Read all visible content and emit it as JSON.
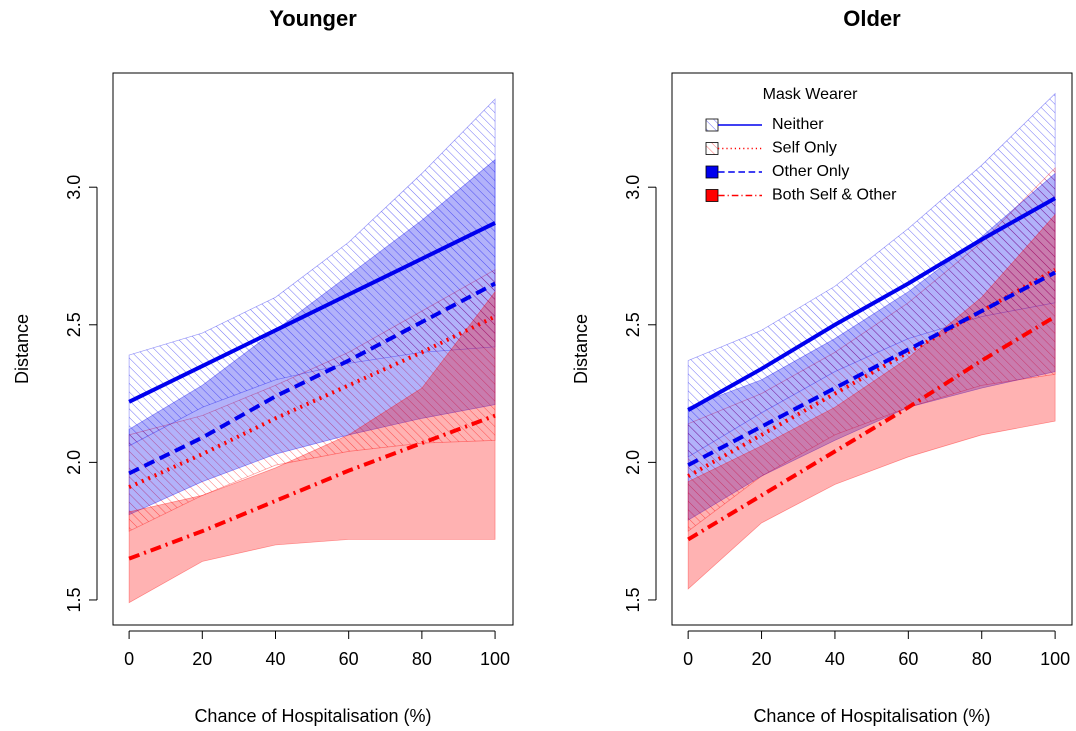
{
  "chart_data": [
    {
      "type": "line",
      "title": "Younger",
      "x_label": "Chance of Hospitalisation (%)",
      "y_label": "Distance",
      "x": [
        0,
        20,
        40,
        60,
        80,
        100
      ],
      "xlim": [
        -4.4,
        104.9
      ],
      "ylim": [
        1.409,
        3.415
      ],
      "xticks": [
        0,
        20,
        40,
        60,
        80,
        100
      ],
      "yticks": [
        1.5,
        {
          "value": 2,
          "label": "2.0"
        },
        2.5,
        {
          "value": 3,
          "label": "3.0"
        }
      ],
      "series": [
        {
          "color": "#0000ee",
          "dash": "solid",
          "band": "hatch",
          "values": [
            2.22,
            2.35,
            2.48,
            2.61,
            2.74,
            2.87
          ],
          "lower": [
            2.06,
            2.2,
            2.3,
            2.36,
            2.4,
            2.42
          ],
          "upper": [
            2.39,
            2.47,
            2.6,
            2.8,
            3.05,
            3.32
          ]
        },
        {
          "color": "#ff0000",
          "dash": "dotted",
          "band": "hatch",
          "values": [
            1.91,
            2.03,
            2.16,
            2.28,
            2.4,
            2.53
          ],
          "lower": [
            1.75,
            1.88,
            1.99,
            2.04,
            2.07,
            2.08
          ],
          "upper": [
            2.1,
            2.17,
            2.28,
            2.4,
            2.55,
            2.7
          ]
        },
        {
          "color": "#0000ee",
          "dash": "dashed",
          "band": "fill",
          "values": [
            1.96,
            2.09,
            2.24,
            2.37,
            2.51,
            2.65
          ],
          "lower": [
            1.81,
            1.93,
            2.03,
            2.1,
            2.16,
            2.21
          ],
          "upper": [
            2.12,
            2.28,
            2.48,
            2.68,
            2.88,
            3.1
          ]
        },
        {
          "color": "#ff0000",
          "dash": "dashdot",
          "band": "fill",
          "values": [
            1.65,
            1.75,
            1.86,
            1.97,
            2.07,
            2.17
          ],
          "lower": [
            1.49,
            1.64,
            1.7,
            1.72,
            1.72,
            1.72
          ],
          "upper": [
            1.82,
            1.88,
            1.98,
            2.1,
            2.27,
            2.62
          ]
        }
      ]
    },
    {
      "type": "line",
      "title": "Older",
      "x_label": "Chance of Hospitalisation (%)",
      "y_label": "Distance",
      "x": [
        0,
        20,
        40,
        60,
        80,
        100
      ],
      "xlim": [
        -4.4,
        104.6
      ],
      "ylim": [
        1.409,
        3.415
      ],
      "xticks": [
        0,
        20,
        40,
        60,
        80,
        100
      ],
      "yticks": [
        1.5,
        {
          "value": 2,
          "label": "2.0"
        },
        2.5,
        {
          "value": 3,
          "label": "3.0"
        }
      ],
      "legend": {
        "title": "Mask Wearer",
        "position": "top-left"
      },
      "series": [
        {
          "name": "Neither",
          "color": "#0000ee",
          "dash": "solid",
          "band": "hatch",
          "values": [
            2.19,
            2.34,
            2.5,
            2.65,
            2.81,
            2.96
          ],
          "lower": [
            2.02,
            2.18,
            2.33,
            2.45,
            2.53,
            2.58
          ],
          "upper": [
            2.37,
            2.48,
            2.64,
            2.85,
            3.08,
            3.34
          ]
        },
        {
          "name": "Self Only",
          "color": "#ff0000",
          "dash": "dotted",
          "band": "hatch",
          "values": [
            1.95,
            2.1,
            2.25,
            2.4,
            2.55,
            2.7
          ],
          "lower": [
            1.75,
            1.95,
            2.1,
            2.2,
            2.28,
            2.32
          ],
          "upper": [
            2.14,
            2.25,
            2.4,
            2.58,
            2.8,
            3.07
          ]
        },
        {
          "name": "Other Only",
          "color": "#0000ee",
          "dash": "dashed",
          "band": "fill",
          "values": [
            1.99,
            2.13,
            2.27,
            2.41,
            2.55,
            2.69
          ],
          "lower": [
            1.79,
            1.95,
            2.08,
            2.2,
            2.27,
            2.33
          ],
          "upper": [
            2.2,
            2.3,
            2.45,
            2.62,
            2.82,
            3.05
          ]
        },
        {
          "name": "Both Self & Other",
          "color": "#ff0000",
          "dash": "dashdot",
          "band": "fill",
          "values": [
            1.72,
            1.88,
            2.04,
            2.2,
            2.37,
            2.53
          ],
          "lower": [
            1.54,
            1.78,
            1.92,
            2.02,
            2.1,
            2.15
          ],
          "upper": [
            1.93,
            2.06,
            2.2,
            2.38,
            2.6,
            2.9
          ]
        }
      ]
    }
  ]
}
